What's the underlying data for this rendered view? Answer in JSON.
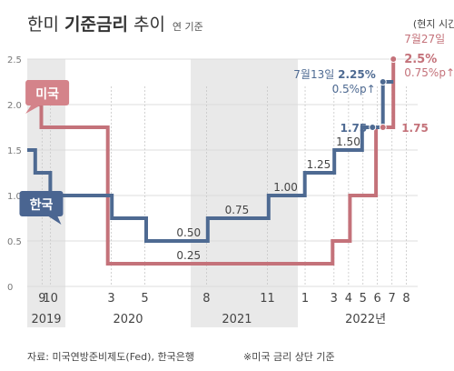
{
  "title": {
    "normal_1": "한미 ",
    "bold": "기준금리",
    "normal_2": " 추이",
    "sub": "연 기준"
  },
  "note_top": "(현지 시간)",
  "footer": {
    "source": "자료: 미국연방준비제도(Fed), 한국은행",
    "note": "※미국 금리 상단 기준"
  },
  "colors": {
    "us": "#c4727a",
    "us_fill": "#d4838a",
    "kr": "#4e6a92",
    "kr_fill": "#4a6591",
    "band": "#e9e9e9",
    "grid": "#dcdcdc",
    "text": "#444444"
  },
  "chart_data": {
    "type": "line",
    "step": true,
    "ylim": [
      0,
      2.5
    ],
    "yticks": [
      "0",
      "0.5",
      "1.0",
      "1.5",
      "2.0",
      "2.5"
    ],
    "x_month_ticks": [
      {
        "t": 2019.708,
        "label": "9"
      },
      {
        "t": 2019.792,
        "label": "10"
      },
      {
        "t": 2020.167,
        "label": "3"
      },
      {
        "t": 2020.333,
        "label": "5"
      },
      {
        "t": 2020.625,
        "label": "8"
      },
      {
        "t": 2020.875,
        "label": "11"
      },
      {
        "t": 2021.042,
        "label": "1"
      },
      {
        "t": 2021.208,
        "label": "3"
      },
      {
        "t": 2021.292,
        "label": "4"
      },
      {
        "t": 2021.375,
        "label": "5"
      },
      {
        "t": 2021.458,
        "label": "6"
      },
      {
        "t": 2021.542,
        "label": "7"
      },
      {
        "t": 2021.625,
        "label": "8"
      }
    ],
    "x_year_labels": [
      {
        "t": 2019.75,
        "label": "2019"
      },
      {
        "t": 2020.25,
        "label": "2020"
      },
      {
        "t": 2020.75,
        "label": "2021"
      },
      {
        "t": 2021.39,
        "label": "2022년"
      }
    ],
    "shaded_years": [
      [
        2019.56,
        2019.94
      ],
      [
        2020.56,
        2021.0
      ]
    ],
    "series": [
      {
        "name": "미국",
        "key": "us",
        "points": [
          [
            2019.56,
            2.25
          ],
          [
            2019.62,
            2.25
          ],
          [
            2019.62,
            2.0
          ],
          [
            2019.7,
            2.0
          ],
          [
            2019.7,
            1.75
          ],
          [
            2020.15,
            1.75
          ],
          [
            2020.15,
            0.25
          ],
          [
            2021.2,
            0.25
          ],
          [
            2021.2,
            0.5
          ],
          [
            2021.3,
            0.5
          ],
          [
            2021.3,
            1.0
          ],
          [
            2021.45,
            1.0
          ],
          [
            2021.45,
            1.75
          ],
          [
            2021.55,
            1.75
          ],
          [
            2021.55,
            2.5
          ]
        ]
      },
      {
        "name": "한국",
        "key": "kr",
        "points": [
          [
            2019.56,
            1.5
          ],
          [
            2019.64,
            1.5
          ],
          [
            2019.64,
            1.25
          ],
          [
            2019.79,
            1.25
          ],
          [
            2019.79,
            1.0
          ],
          [
            2020.17,
            1.0
          ],
          [
            2020.17,
            0.75
          ],
          [
            2020.34,
            0.75
          ],
          [
            2020.34,
            0.5
          ],
          [
            2020.63,
            0.5
          ],
          [
            2020.63,
            0.75
          ],
          [
            2020.88,
            0.75
          ],
          [
            2020.88,
            1.0
          ],
          [
            2021.04,
            1.0
          ],
          [
            2021.04,
            1.25
          ],
          [
            2021.21,
            1.25
          ],
          [
            2021.21,
            1.5
          ],
          [
            2021.37,
            1.5
          ],
          [
            2021.37,
            1.75
          ],
          [
            2021.49,
            1.75
          ],
          [
            2021.49,
            2.25
          ],
          [
            2021.55,
            2.25
          ]
        ]
      }
    ],
    "data_labels": [
      {
        "text": "0.25",
        "t": 2020.55,
        "v": 0.25,
        "series": "us",
        "offset": -5
      },
      {
        "text": "0.50",
        "t": 2020.55,
        "v": 0.5,
        "series": "kr",
        "offset": -5
      },
      {
        "text": "0.75",
        "t": 2020.75,
        "v": 0.75,
        "series": "kr",
        "offset": -5
      },
      {
        "text": "1.00",
        "t": 2020.95,
        "v": 1.0,
        "series": "kr",
        "offset": -5
      },
      {
        "text": "1.25",
        "t": 2021.12,
        "v": 1.25,
        "series": "kr",
        "offset": -5
      },
      {
        "text": "1.50",
        "t": 2021.29,
        "v": 1.5,
        "series": "kr",
        "offset": -5
      }
    ],
    "legend_tags": [
      {
        "label": "미국",
        "series": "us",
        "t": 2019.76,
        "v": 2.12
      },
      {
        "label": "한국",
        "series": "kr",
        "t": 2019.7,
        "v": 0.9
      }
    ],
    "markers": [
      {
        "series": "kr",
        "t": 2021.43,
        "v": 1.75
      },
      {
        "series": "kr",
        "t": 2021.49,
        "v": 2.25
      },
      {
        "series": "us",
        "t": 2021.49,
        "v": 1.75
      },
      {
        "series": "us",
        "t": 2021.55,
        "v": 2.5
      }
    ],
    "annotations": {
      "kr_175": "1.75",
      "us_175": "1.75",
      "kr_date": "7월13일",
      "kr_rate": "2.25%",
      "kr_change": "0.5%p↑",
      "us_date": "7월27일",
      "us_rate": "2.5%",
      "us_change": "0.75%p↑"
    }
  }
}
